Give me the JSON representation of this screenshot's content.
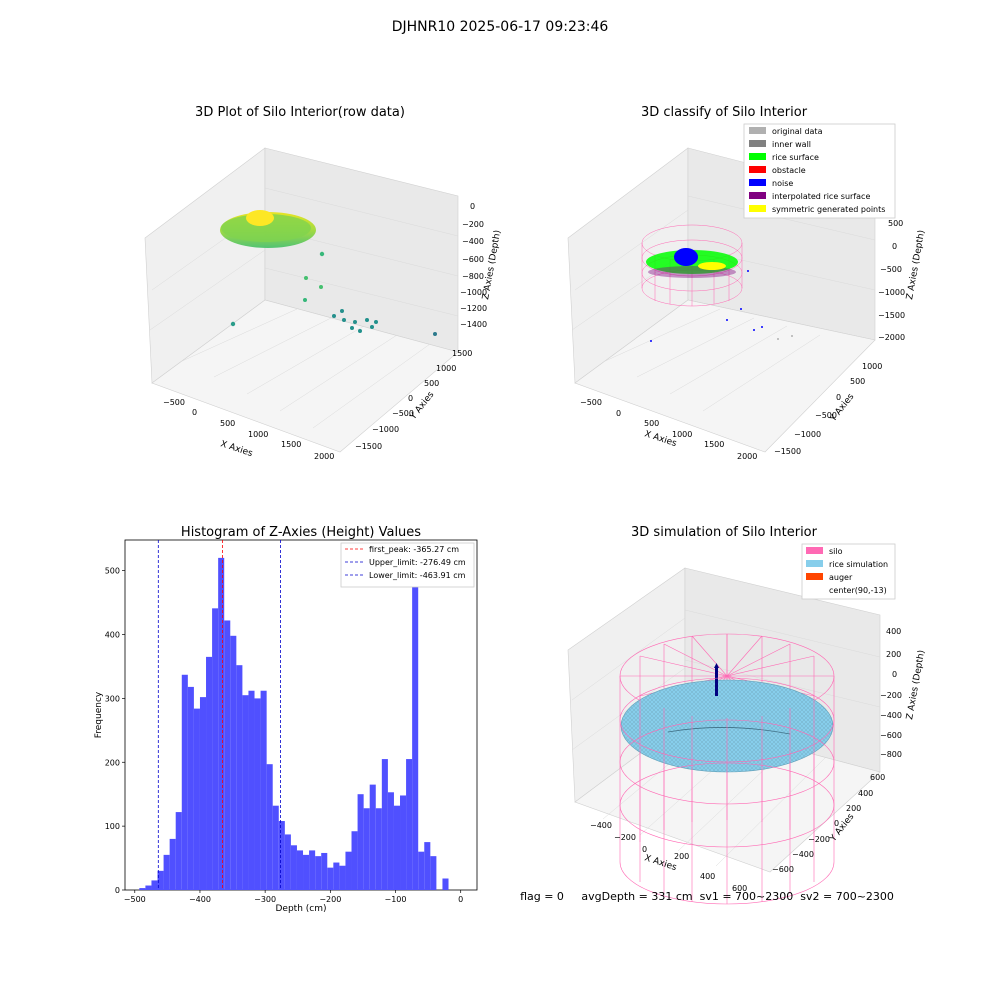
{
  "figure": {
    "suptitle": "DJHNR10 2025-06-17 09:23:46",
    "status_line": "flag = 0     avgDepth = 331 cm  sv1 = 700~2300  sv2 = 700~2300"
  },
  "colors": {
    "hist_bar": "#5050ff",
    "first_peak": "#ff0000",
    "limit_line": "#0000cc",
    "silo": "#ff69b4",
    "rice_simulation": "#87ceeb",
    "auger": "#ff4500",
    "pane": "#f2f2f2",
    "grid": "#dcdcdc"
  },
  "chart_data": [
    {
      "type": "scatter",
      "subtype": "3d",
      "title": "3D Plot of Silo Interior(row data)",
      "xlabel": "X Axies",
      "ylabel": "Y Axies",
      "zlabel": "Z Axies (Depth)",
      "xticks": [
        "−500",
        "0",
        "500",
        "1000",
        "1500",
        "2000"
      ],
      "yticks": [
        "1500",
        "1000",
        "500",
        "0",
        "−500",
        "−1000",
        "−1500"
      ],
      "zticks": [
        "0",
        "−200",
        "−400",
        "−600",
        "−800",
        "−1000",
        "−1200",
        "−1400"
      ],
      "colormap": "viridis",
      "description": "dense cluster near depth -300 with sparse points down to -1400"
    },
    {
      "type": "scatter",
      "subtype": "3d",
      "title": "3D classify of Silo Interior",
      "xlabel": "X Axies",
      "ylabel": "Y Axies",
      "zlabel": "Z Axies (Depth)",
      "xticks": [
        "−500",
        "0",
        "500",
        "1000",
        "1500",
        "2000"
      ],
      "yticks": [
        "1000",
        "500",
        "0",
        "−500",
        "−1000",
        "−1500"
      ],
      "zticks": [
        "500",
        "0",
        "−500",
        "−1000",
        "−1500",
        "−2000"
      ],
      "legend": [
        {
          "label": "original data",
          "color": "#b0b0b0"
        },
        {
          "label": "inner wall",
          "color": "#808080"
        },
        {
          "label": "rice surface",
          "color": "#00ff00"
        },
        {
          "label": "obstacle",
          "color": "#ff0000"
        },
        {
          "label": "noise",
          "color": "#0000ff"
        },
        {
          "label": "interpolated rice surface",
          "color": "#800080"
        },
        {
          "label": "symmetric generated points",
          "color": "#ffff00"
        }
      ],
      "legend_loc": "upper right"
    },
    {
      "type": "bar",
      "subtype": "histogram",
      "title": "Histogram of Z-Axies (Height) Values",
      "xlabel": "Depth (cm)",
      "ylabel": "Frequency",
      "xlim": [
        -515,
        25
      ],
      "ylim": [
        0,
        548
      ],
      "xticks": [
        -500,
        -400,
        -300,
        -200,
        -100,
        0
      ],
      "yticks": [
        0,
        100,
        200,
        300,
        400,
        500
      ],
      "bin_start": -493.0,
      "bin_width": 9.3,
      "values": [
        3,
        7,
        15,
        30,
        55,
        80,
        122,
        337,
        318,
        284,
        302,
        365,
        441,
        520,
        422,
        398,
        352,
        305,
        312,
        300,
        312,
        197,
        132,
        108,
        87,
        70,
        62,
        55,
        62,
        53,
        58,
        35,
        43,
        38,
        60,
        92,
        150,
        128,
        165,
        128,
        205,
        153,
        132,
        148,
        205,
        480,
        60,
        75,
        53,
        0,
        18
      ],
      "vlines": [
        {
          "name": "first_peak",
          "label": "first_peak: -365.27 cm",
          "x": -365.27,
          "color": "#ff0000"
        },
        {
          "name": "upper_limit",
          "label": "Upper_limit: -276.49 cm",
          "x": -276.49,
          "color": "#0000cc"
        },
        {
          "name": "lower_limit",
          "label": "Lower_limit: -463.91 cm",
          "x": -463.91,
          "color": "#0000cc"
        }
      ],
      "legend_loc": "upper right"
    },
    {
      "type": "surface",
      "subtype": "3d",
      "title": "3D simulation of Silo Interior",
      "xlabel": "X Axies",
      "ylabel": "Y Axies",
      "zlabel": "Z Axies (Depth)",
      "xticks": [
        "−400",
        "−200",
        "0",
        "200",
        "400",
        "600"
      ],
      "yticks": [
        "600",
        "400",
        "200",
        "0",
        "−200",
        "−400",
        "−600"
      ],
      "zticks": [
        "400",
        "200",
        "0",
        "−200",
        "−400",
        "−600",
        "−800"
      ],
      "legend": [
        {
          "label": "silo",
          "color": "#ff69b4"
        },
        {
          "label": "rice simulation",
          "color": "#87ceeb"
        },
        {
          "label": "auger",
          "color": "#ff4500"
        },
        {
          "label": "center(90,-13)",
          "color": ""
        }
      ],
      "legend_loc": "upper right"
    }
  ]
}
